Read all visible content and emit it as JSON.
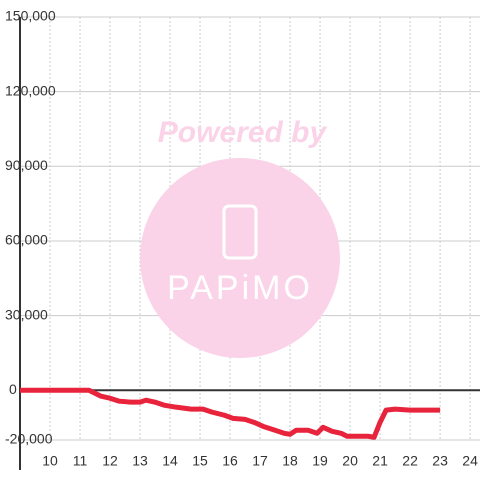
{
  "chart_data": {
    "type": "line",
    "watermark": {
      "top": "Powered by",
      "bottom": "PAPiMO"
    },
    "xlim": [
      9,
      24.33
    ],
    "xticks": [
      10,
      11,
      12,
      13,
      14,
      15,
      16,
      17,
      18,
      19,
      20,
      21,
      22,
      23,
      24
    ],
    "ylim": [
      -20000,
      150000
    ],
    "yticks": [
      {
        "value": -20000,
        "label": "-20,000"
      },
      0,
      {
        "value": 30000,
        "label": "30,000"
      },
      {
        "value": 60000,
        "label": "60,000"
      },
      {
        "value": 90000,
        "label": "90,000"
      },
      {
        "value": 120000,
        "label": "120,000"
      },
      {
        "value": 150000,
        "label": "150,000"
      }
    ],
    "grid": true,
    "series": [
      {
        "color": "#e8233c",
        "x": [
          9,
          11.3,
          11.5,
          11.7,
          12,
          12.3,
          12.7,
          13,
          13.2,
          13.5,
          13.8,
          14.2,
          14.7,
          15.1,
          15.4,
          15.8,
          16.1,
          16.5,
          16.8,
          17.1,
          17.5,
          17.8,
          18,
          18.2,
          18.6,
          18.9,
          19.1,
          19.4,
          19.7,
          19.9,
          20.3,
          20.6,
          20.8,
          21,
          21.2,
          21.5,
          22,
          23
        ],
        "values": [
          0,
          0,
          -1200,
          -2400,
          -3200,
          -4400,
          -4800,
          -4800,
          -4000,
          -4800,
          -6000,
          -6800,
          -7600,
          -7600,
          -8800,
          -10000,
          -11300,
          -11700,
          -12900,
          -14500,
          -16100,
          -17300,
          -17700,
          -16100,
          -16100,
          -17300,
          -14900,
          -16500,
          -17300,
          -18500,
          -18500,
          -18500,
          -18900,
          -12900,
          -8000,
          -7600,
          -8000,
          -8000
        ]
      }
    ]
  }
}
